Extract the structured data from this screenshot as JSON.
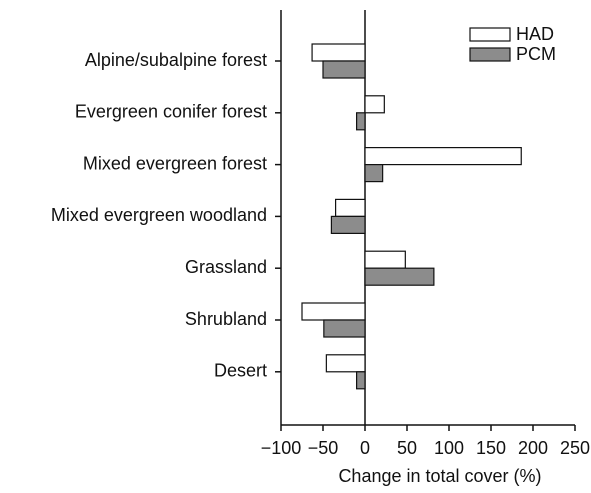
{
  "chart_data": {
    "type": "hbar",
    "xlabel": "Change in total cover (%)",
    "categories": [
      "Alpine/subalpine forest",
      "Evergreen conifer forest",
      "Mixed evergreen forest",
      "Mixed evergreen woodland",
      "Grassland",
      "Shrubland",
      "Desert"
    ],
    "series": [
      {
        "name": "HAD",
        "color": "#ffffff",
        "values": [
          -63,
          23,
          186,
          -35,
          48,
          -75,
          -46
        ]
      },
      {
        "name": "PCM",
        "color": "#8c8c8c",
        "values": [
          -50,
          -10,
          21,
          -40,
          82,
          -49,
          -10
        ]
      }
    ],
    "xlim": [
      -100,
      250
    ],
    "xticks": [
      {
        "value": -100,
        "label": "−100"
      },
      {
        "value": -50,
        "label": "−50"
      },
      0,
      50,
      100,
      150,
      200,
      250
    ],
    "legend": "upper right"
  }
}
